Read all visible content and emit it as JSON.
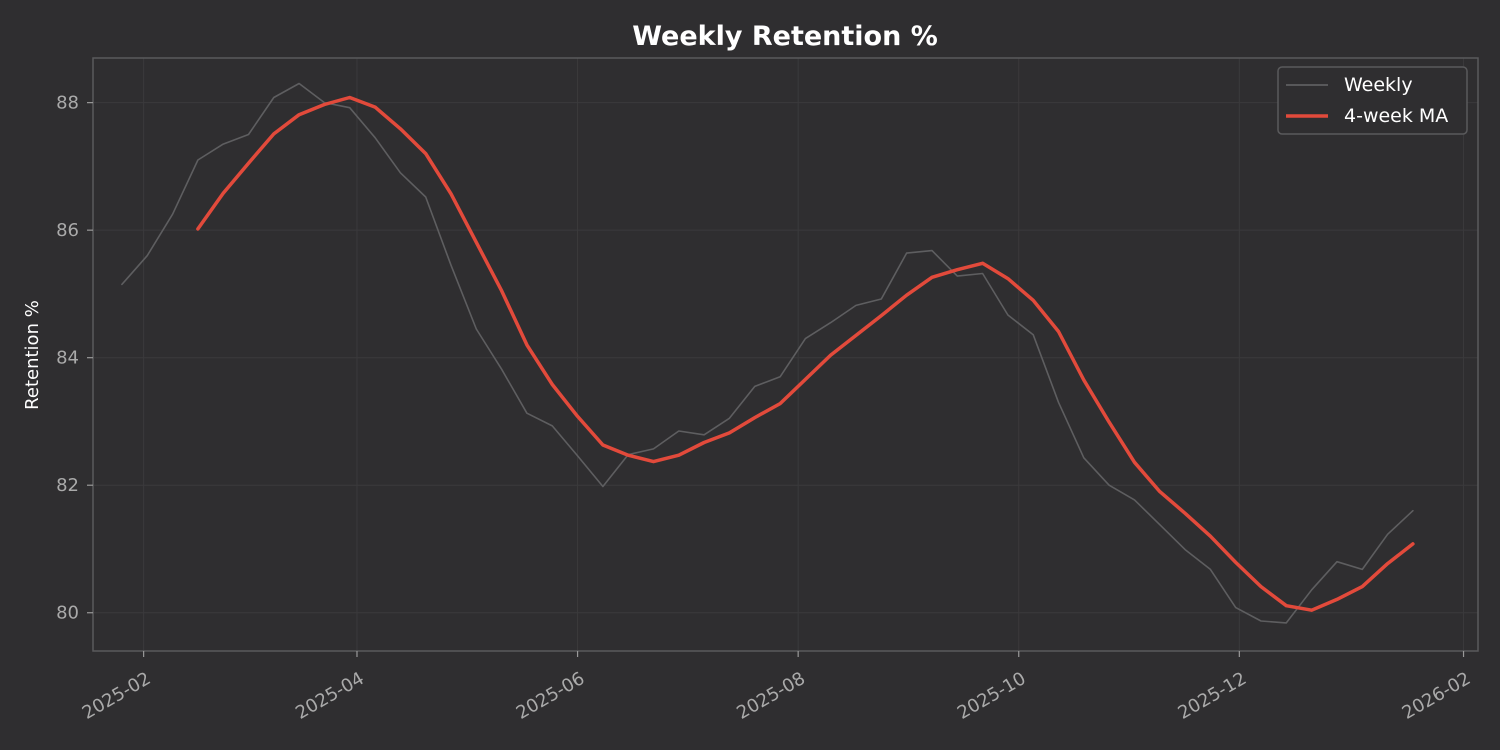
{
  "chart_data": {
    "type": "line",
    "title": "Weekly Retention %",
    "xlabel": "",
    "ylabel": "Retention %",
    "xlim": [
      "2025-01-18",
      "2026-02-05"
    ],
    "ylim": [
      79.4,
      88.7
    ],
    "x_ticks": [
      "2025-02",
      "2025-04",
      "2025-06",
      "2025-08",
      "2025-10",
      "2025-12",
      "2026-02"
    ],
    "y_ticks": [
      80,
      82,
      84,
      86,
      88
    ],
    "grid": true,
    "legend": "top-right",
    "x": [
      "2025-01-26",
      "2025-02-02",
      "2025-02-09",
      "2025-02-16",
      "2025-02-23",
      "2025-03-02",
      "2025-03-09",
      "2025-03-16",
      "2025-03-23",
      "2025-03-30",
      "2025-04-06",
      "2025-04-13",
      "2025-04-20",
      "2025-04-27",
      "2025-05-04",
      "2025-05-11",
      "2025-05-18",
      "2025-05-25",
      "2025-06-01",
      "2025-06-08",
      "2025-06-15",
      "2025-06-22",
      "2025-06-29",
      "2025-07-06",
      "2025-07-13",
      "2025-07-20",
      "2025-07-27",
      "2025-08-03",
      "2025-08-10",
      "2025-08-17",
      "2025-08-24",
      "2025-08-31",
      "2025-09-07",
      "2025-09-14",
      "2025-09-21",
      "2025-09-28",
      "2025-10-05",
      "2025-10-12",
      "2025-10-19",
      "2025-10-26",
      "2025-11-02",
      "2025-11-09",
      "2025-11-16",
      "2025-11-23",
      "2025-11-30",
      "2025-12-07",
      "2025-12-14",
      "2025-12-21",
      "2025-12-28",
      "2026-01-04",
      "2026-01-11",
      "2026-01-18"
    ],
    "series": [
      {
        "name": "Weekly",
        "color": "#5e5e60",
        "values": [
          85.15,
          85.6,
          86.25,
          87.1,
          87.35,
          87.5,
          88.08,
          88.3,
          88.0,
          87.92,
          87.45,
          86.9,
          86.52,
          85.45,
          84.45,
          83.82,
          83.13,
          82.93,
          82.46,
          81.98,
          82.48,
          82.57,
          82.85,
          82.79,
          83.05,
          83.55,
          83.7,
          84.3,
          84.55,
          84.82,
          84.92,
          85.64,
          85.68,
          85.28,
          85.32,
          84.67,
          84.36,
          83.3,
          82.43,
          82.0,
          81.77,
          81.38,
          80.99,
          80.68,
          80.08,
          79.87,
          79.84,
          80.36,
          80.8,
          80.68,
          81.23,
          81.6
        ]
      },
      {
        "name": "4-week MA",
        "color": "#e24a3b",
        "values": [
          null,
          null,
          null,
          86.02,
          86.58,
          87.05,
          87.51,
          87.81,
          87.97,
          88.08,
          87.93,
          87.59,
          87.2,
          86.57,
          85.81,
          85.05,
          84.2,
          83.58,
          83.08,
          82.63,
          82.47,
          82.37,
          82.47,
          82.67,
          82.82,
          83.06,
          83.28,
          83.66,
          84.04,
          84.35,
          84.66,
          84.98,
          85.26,
          85.38,
          85.48,
          85.24,
          84.9,
          84.41,
          83.65,
          82.99,
          82.36,
          81.9,
          81.56,
          81.2,
          80.79,
          80.41,
          80.11,
          80.04,
          80.21,
          80.41,
          80.77,
          81.08
        ]
      }
    ]
  }
}
